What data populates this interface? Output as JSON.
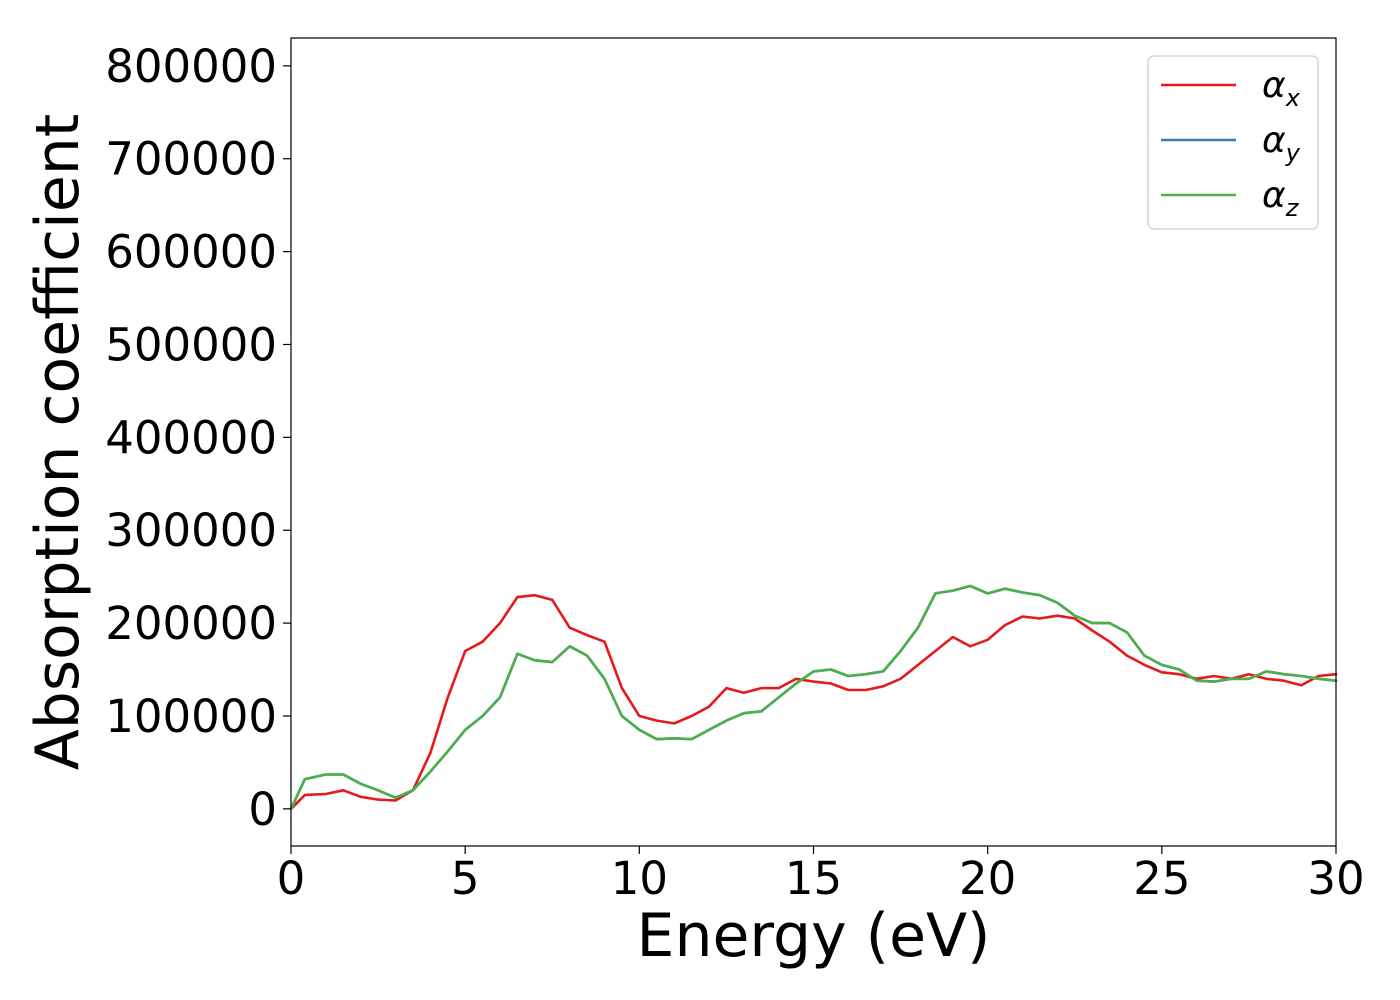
{
  "chart_data": {
    "type": "line",
    "title": "",
    "xlabel": "Energy (eV)",
    "ylabel": "Absorption coefficient",
    "xlim": [
      0,
      30
    ],
    "ylim": [
      -40000,
      830000
    ],
    "xticks": [
      0,
      5,
      10,
      15,
      20,
      25,
      30
    ],
    "yticks": [
      0,
      100000,
      200000,
      300000,
      400000,
      500000,
      600000,
      700000,
      800000
    ],
    "grid": false,
    "legend_position": "top-right",
    "series": [
      {
        "name": "α",
        "subscript": "x",
        "color": "#e41a1c",
        "x": [
          0,
          0.4,
          1.0,
          1.5,
          2.0,
          2.5,
          3.0,
          3.5,
          4.0,
          4.5,
          5.0,
          5.5,
          6.0,
          6.5,
          7.0,
          7.5,
          8.0,
          8.5,
          9.0,
          9.5,
          10.0,
          10.5,
          11.0,
          11.5,
          12.0,
          12.5,
          13.0,
          13.5,
          14.0,
          14.5,
          15.0,
          15.5,
          16.0,
          16.5,
          17.0,
          17.5,
          18.0,
          18.5,
          19.0,
          19.5,
          20.0,
          20.5,
          21.0,
          21.5,
          22.0,
          22.5,
          23.0,
          23.5,
          24.0,
          24.5,
          25.0,
          25.5,
          26.0,
          26.5,
          27.0,
          27.5,
          28.0,
          28.5,
          29.0,
          29.5,
          30.0
        ],
        "y": [
          0,
          15000,
          16000,
          20000,
          13000,
          10000,
          9000,
          20000,
          60000,
          120000,
          170000,
          180000,
          200000,
          228000,
          230000,
          225000,
          195000,
          187000,
          180000,
          130000,
          100000,
          95000,
          92000,
          100000,
          110000,
          130000,
          125000,
          130000,
          130000,
          140000,
          137000,
          135000,
          128000,
          128000,
          132000,
          140000,
          155000,
          170000,
          185000,
          175000,
          182000,
          198000,
          207000,
          205000,
          208000,
          205000,
          192000,
          180000,
          165000,
          155000,
          147000,
          145000,
          140000,
          143000,
          140000,
          145000,
          140000,
          138000,
          133000,
          143000,
          145000
        ]
      },
      {
        "name": "α",
        "subscript": "y",
        "color": "#377eb8",
        "x": [
          0,
          0.4,
          1.0,
          1.5,
          2.0,
          2.5,
          3.0,
          3.5,
          4.0,
          4.5,
          5.0,
          5.5,
          6.0,
          6.5,
          7.0,
          7.5,
          8.0,
          8.5,
          9.0,
          9.5,
          10.0,
          10.5,
          11.0,
          11.5,
          12.0,
          12.5,
          13.0,
          13.5,
          14.0,
          14.5,
          15.0,
          15.5,
          16.0,
          16.5,
          17.0,
          17.5,
          18.0,
          18.5,
          19.0,
          19.5,
          20.0,
          20.5,
          21.0,
          21.5,
          22.0,
          22.5,
          23.0,
          23.5,
          24.0,
          24.5,
          25.0,
          25.5,
          26.0,
          26.5,
          27.0,
          27.5,
          28.0,
          28.5,
          29.0,
          29.5,
          30.0
        ],
        "y": [
          0,
          32000,
          37000,
          37000,
          27000,
          20000,
          12000,
          20000,
          40000,
          62000,
          85000,
          100000,
          120000,
          167000,
          160000,
          158000,
          175000,
          165000,
          140000,
          100000,
          85000,
          75000,
          76000,
          75000,
          85000,
          95000,
          103000,
          105000,
          120000,
          135000,
          148000,
          150000,
          143000,
          145000,
          148000,
          170000,
          195000,
          232000,
          235000,
          240000,
          232000,
          237000,
          233000,
          230000,
          222000,
          208000,
          200000,
          200000,
          190000,
          165000,
          155000,
          150000,
          138000,
          137000,
          140000,
          140000,
          148000,
          145000,
          143000,
          140000,
          138000
        ]
      },
      {
        "name": "α",
        "subscript": "z",
        "color": "#4daf4a",
        "x": [
          0,
          0.4,
          1.0,
          1.5,
          2.0,
          2.5,
          3.0,
          3.5,
          4.0,
          4.5,
          5.0,
          5.5,
          6.0,
          6.5,
          7.0,
          7.5,
          8.0,
          8.5,
          9.0,
          9.5,
          10.0,
          10.5,
          11.0,
          11.5,
          12.0,
          12.5,
          13.0,
          13.5,
          14.0,
          14.5,
          15.0,
          15.5,
          16.0,
          16.5,
          17.0,
          17.5,
          18.0,
          18.5,
          19.0,
          19.5,
          20.0,
          20.5,
          21.0,
          21.5,
          22.0,
          22.5,
          23.0,
          23.5,
          24.0,
          24.5,
          25.0,
          25.5,
          26.0,
          26.5,
          27.0,
          27.5,
          28.0,
          28.5,
          29.0,
          29.5,
          30.0
        ],
        "y": [
          0,
          32000,
          37000,
          37000,
          27000,
          20000,
          12000,
          20000,
          40000,
          62000,
          85000,
          100000,
          120000,
          167000,
          160000,
          158000,
          175000,
          165000,
          140000,
          100000,
          85000,
          75000,
          76000,
          75000,
          85000,
          95000,
          103000,
          105000,
          120000,
          135000,
          148000,
          150000,
          143000,
          145000,
          148000,
          170000,
          195000,
          232000,
          235000,
          240000,
          232000,
          237000,
          233000,
          230000,
          222000,
          208000,
          200000,
          200000,
          190000,
          165000,
          155000,
          150000,
          138000,
          137000,
          140000,
          140000,
          148000,
          145000,
          143000,
          140000,
          138000
        ]
      }
    ]
  }
}
